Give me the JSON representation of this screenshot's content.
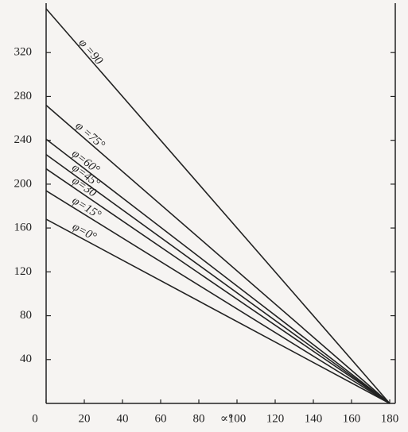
{
  "chart_data": {
    "type": "line",
    "x_label": "∝°",
    "x": [
      0,
      180
    ],
    "series": [
      {
        "name": "φ =90",
        "color": "#222222",
        "values": [
          360,
          0
        ]
      },
      {
        "name": "φ =75°",
        "color": "#222222",
        "values": [
          272,
          0
        ]
      },
      {
        "name": "φ=60°",
        "color": "#222222",
        "values": [
          241,
          0
        ]
      },
      {
        "name": "φ=45°",
        "color": "#222222",
        "values": [
          227,
          0
        ]
      },
      {
        "name": "φ=30",
        "color": "#222222",
        "values": [
          214,
          0
        ]
      },
      {
        "name": "φ=15°",
        "color": "#222222",
        "values": [
          194,
          0
        ]
      },
      {
        "name": "φ=0°",
        "color": "#222222",
        "values": [
          168,
          0
        ]
      }
    ],
    "xlim": [
      0,
      180
    ],
    "ylim": [
      0,
      360
    ],
    "xticks": [
      0,
      20,
      40,
      60,
      80,
      100,
      120,
      140,
      160,
      180
    ],
    "yticks": [
      40,
      80,
      120,
      160,
      200,
      240,
      280,
      320
    ],
    "grid": false
  }
}
